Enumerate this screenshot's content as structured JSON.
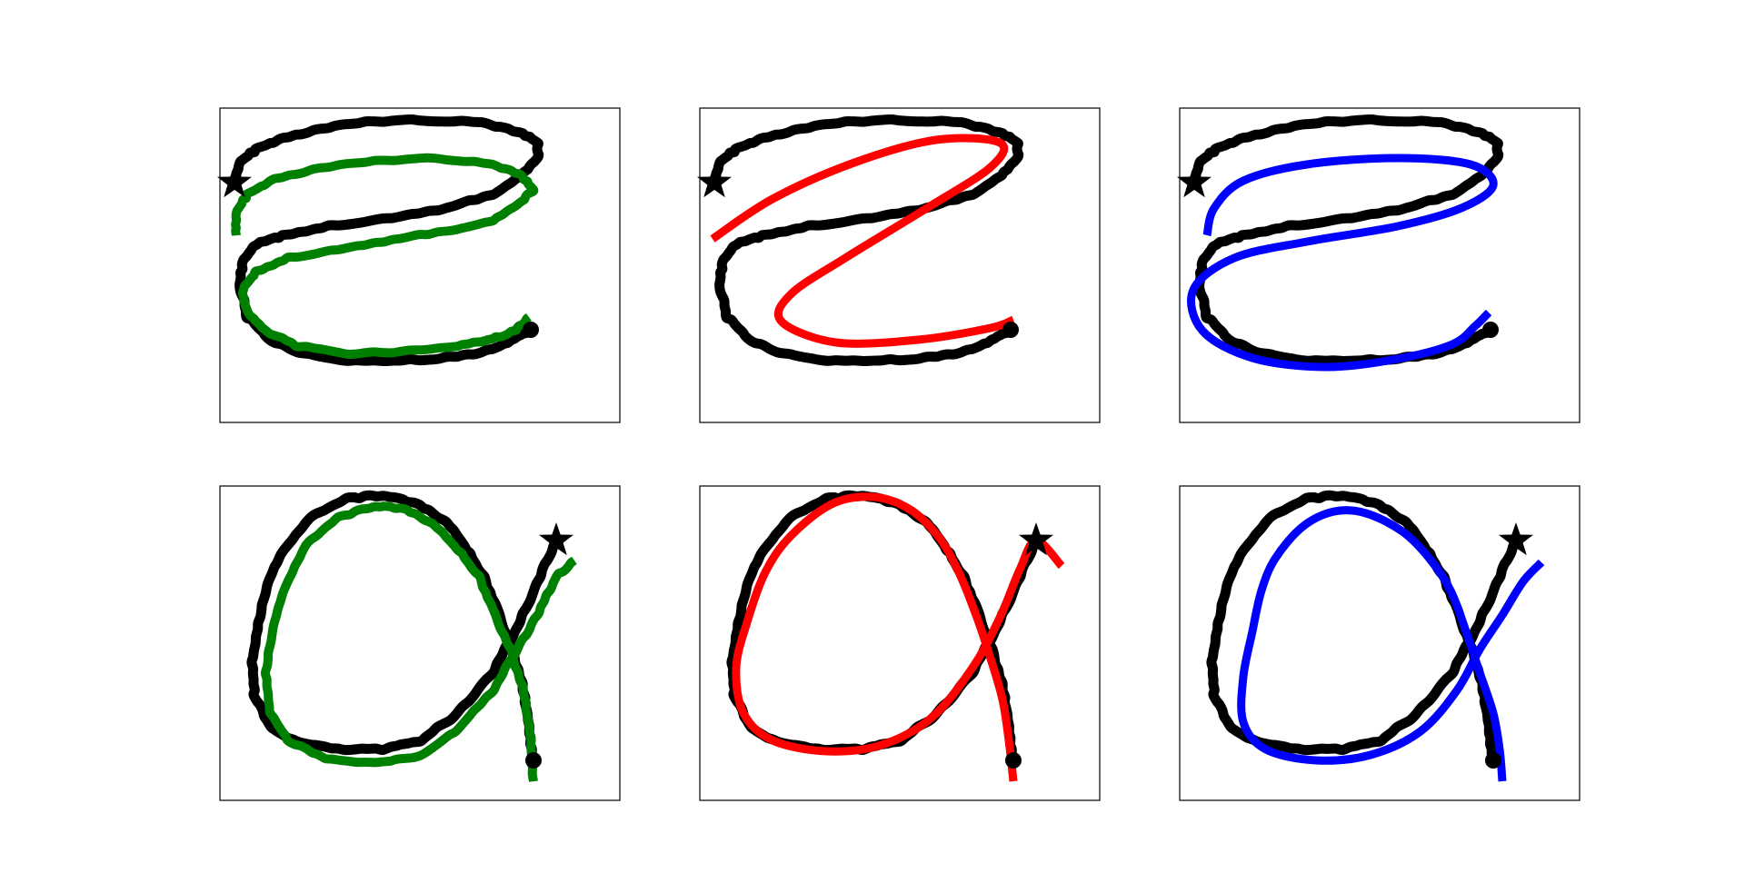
{
  "colors": {
    "demo": "#000000",
    "green": "#008000",
    "red": "#ff0000",
    "blue": "#0000ff",
    "frame": "#000000",
    "background": "#ffffff"
  },
  "markers": {
    "start": "star",
    "end": "circle"
  },
  "grid": {
    "rows": 2,
    "cols": 3
  },
  "panels": [
    {
      "row": 0,
      "col": 0,
      "glyph": "z",
      "reproduction": "green",
      "style": "jagged-offset"
    },
    {
      "row": 0,
      "col": 1,
      "glyph": "z",
      "reproduction": "red",
      "style": "smooth-simplified"
    },
    {
      "row": 0,
      "col": 2,
      "glyph": "z",
      "reproduction": "blue",
      "style": "smooth-close"
    },
    {
      "row": 1,
      "col": 0,
      "glyph": "alpha",
      "reproduction": "green",
      "style": "jagged-offset"
    },
    {
      "row": 1,
      "col": 1,
      "glyph": "alpha",
      "reproduction": "red",
      "style": "smooth-close"
    },
    {
      "row": 1,
      "col": 2,
      "glyph": "alpha",
      "reproduction": "blue",
      "style": "smooth-simplified"
    }
  ]
}
